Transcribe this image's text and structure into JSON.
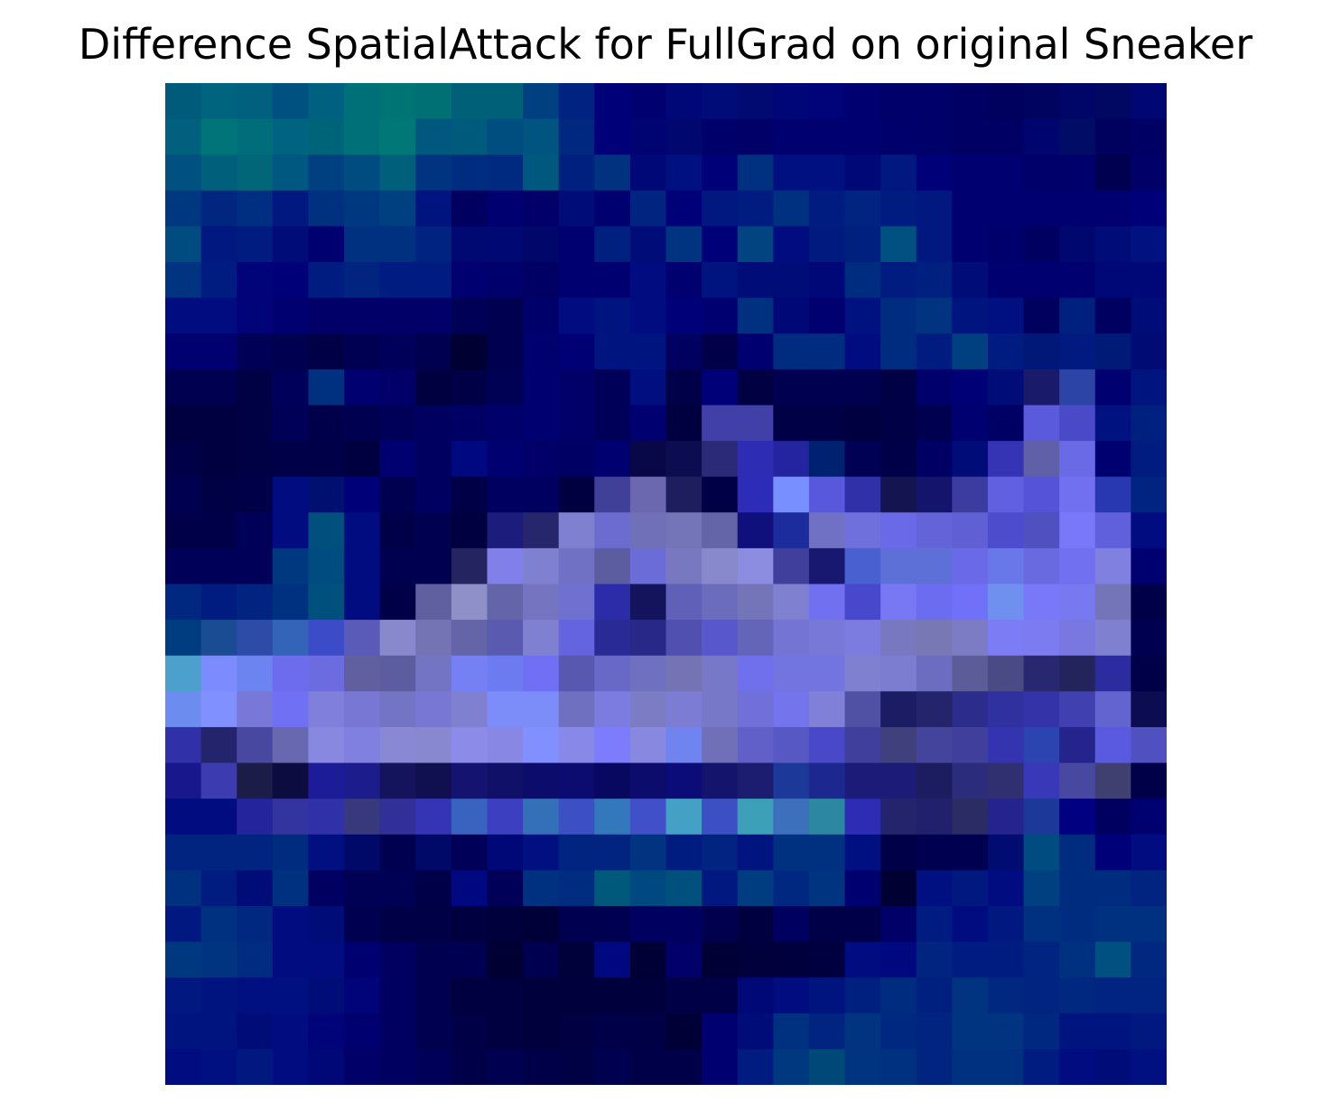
{
  "chart_data": {
    "type": "heatmap",
    "title": "Difference SpatialAttack for FullGrad on original Sneaker",
    "rows": 28,
    "cols": 28,
    "grid": false,
    "axes_visible": false,
    "colors": [
      [
        "#005a7a",
        "#00647e",
        "#00607e",
        "#005080",
        "#006080",
        "#007078",
        "#007474",
        "#007074",
        "#006078",
        "#006078",
        "#004080",
        "#002280",
        "#000078",
        "#000070",
        "#000878",
        "#000c78",
        "#000a70",
        "#000678",
        "#000478",
        "#000070",
        "#00006a",
        "#00006a",
        "#000064",
        "#00005e",
        "#00045e",
        "#000668",
        "#000862",
        "#000672"
      ],
      [
        "#00607e",
        "#007478",
        "#006e7a",
        "#006480",
        "#006478",
        "#007078",
        "#007878",
        "#00587e",
        "#005a7c",
        "#004e80",
        "#005480",
        "#002880",
        "#000078",
        "#000472",
        "#000870",
        "#00006a",
        "#000068",
        "#000070",
        "#000070",
        "#000070",
        "#00006c",
        "#00006a",
        "#000064",
        "#000064",
        "#00046e",
        "#000c66",
        "#00005e",
        "#000064"
      ],
      [
        "#005080",
        "#00607c",
        "#006678",
        "#005880",
        "#004080",
        "#004c80",
        "#00607c",
        "#003480",
        "#002c80",
        "#002a80",
        "#00587e",
        "#002080",
        "#003280",
        "#000878",
        "#001080",
        "#000078",
        "#003080",
        "#001080",
        "#001080",
        "#000878",
        "#001880",
        "#000078",
        "#000070",
        "#000070",
        "#00006a",
        "#00006c",
        "#000050",
        "#000068"
      ],
      [
        "#003880",
        "#002680",
        "#002e80",
        "#001880",
        "#003080",
        "#003880",
        "#004080",
        "#001480",
        "#000060",
        "#000070",
        "#000068",
        "#000c78",
        "#000070",
        "#002480",
        "#000078",
        "#001880",
        "#001c80",
        "#003080",
        "#001c80",
        "#002480",
        "#001c80",
        "#001880",
        "#000070",
        "#000070",
        "#000070",
        "#000070",
        "#000070",
        "#000078"
      ],
      [
        "#004c80",
        "#001880",
        "#001c80",
        "#000c78",
        "#000070",
        "#003080",
        "#003080",
        "#002280",
        "#000872",
        "#000874",
        "#00066a",
        "#000070",
        "#002080",
        "#000c78",
        "#003480",
        "#000078",
        "#004480",
        "#000c80",
        "#001a80",
        "#002080",
        "#005080",
        "#001880",
        "#000070",
        "#00006c",
        "#000060",
        "#000870",
        "#000c78",
        "#001280"
      ],
      [
        "#003480",
        "#001c80",
        "#000478",
        "#000078",
        "#001c80",
        "#002480",
        "#001c80",
        "#001c80",
        "#000070",
        "#00006c",
        "#000064",
        "#000070",
        "#000070",
        "#000c80",
        "#000070",
        "#001480",
        "#000c78",
        "#000c78",
        "#000878",
        "#002c80",
        "#001c80",
        "#002080",
        "#000c78",
        "#000070",
        "#000070",
        "#000070",
        "#000878",
        "#000878"
      ],
      [
        "#000c80",
        "#000c80",
        "#000478",
        "#000070",
        "#000068",
        "#000068",
        "#000068",
        "#000068",
        "#000056",
        "#000050",
        "#00006a",
        "#000c80",
        "#001480",
        "#000c80",
        "#000078",
        "#000070",
        "#003080",
        "#000878",
        "#000070",
        "#001280",
        "#002c80",
        "#003480",
        "#001480",
        "#001080",
        "#00005e",
        "#002080",
        "#000060",
        "#000c78"
      ],
      [
        "#000070",
        "#000070",
        "#000056",
        "#000050",
        "#000046",
        "#000052",
        "#00005a",
        "#000050",
        "#000032",
        "#000050",
        "#00006e",
        "#000074",
        "#001480",
        "#001480",
        "#000060",
        "#000048",
        "#000070",
        "#002c80",
        "#002c80",
        "#000c80",
        "#002c80",
        "#001c80",
        "#004080",
        "#001c80",
        "#001878",
        "#001a80",
        "#001a78",
        "#000c74"
      ],
      [
        "#000050",
        "#000050",
        "#000044",
        "#00005a",
        "#003080",
        "#000070",
        "#000068",
        "#000040",
        "#000046",
        "#000054",
        "#000070",
        "#000068",
        "#000058",
        "#000e80",
        "#000048",
        "#000078",
        "#000042",
        "#000050",
        "#000050",
        "#000050",
        "#000044",
        "#00006c",
        "#000076",
        "#000c78",
        "#1a1a6a",
        "#2c44a6",
        "#000070",
        "#001480"
      ],
      [
        "#000040",
        "#000040",
        "#000044",
        "#000056",
        "#00004a",
        "#000050",
        "#000058",
        "#000060",
        "#000064",
        "#00006a",
        "#000070",
        "#000068",
        "#000058",
        "#000070",
        "#000040",
        "#4040a8",
        "#4040a8",
        "#000046",
        "#000046",
        "#000040",
        "#000046",
        "#000050",
        "#000070",
        "#000064",
        "#5a5adc",
        "#4a4ac8",
        "#001280",
        "#002080"
      ],
      [
        "#000048",
        "#000040",
        "#000044",
        "#000048",
        "#000048",
        "#000040",
        "#000070",
        "#000060",
        "#000880",
        "#000070",
        "#000068",
        "#000064",
        "#000070",
        "#080848",
        "#0c0c50",
        "#2a2a78",
        "#2c2cb4",
        "#2424a0",
        "#002070",
        "#000054",
        "#000048",
        "#000064",
        "#000c78",
        "#3434b4",
        "#6060a8",
        "#6a6ae6",
        "#000070",
        "#001c80"
      ],
      [
        "#000050",
        "#000044",
        "#000048",
        "#000c80",
        "#001070",
        "#000078",
        "#000050",
        "#000060",
        "#000046",
        "#000060",
        "#000060",
        "#000040",
        "#404098",
        "#6c68b0",
        "#1e1e5e",
        "#000046",
        "#2c2cb8",
        "#7890ff",
        "#5858dc",
        "#3030a8",
        "#141450",
        "#14146c",
        "#3c3ca0",
        "#6060e0",
        "#5454d8",
        "#7070f0",
        "#2838b0",
        "#002480"
      ],
      [
        "#000048",
        "#000048",
        "#000058",
        "#000c80",
        "#00507e",
        "#000c80",
        "#000048",
        "#000050",
        "#000040",
        "#1c1c7c",
        "#26266c",
        "#8080d0",
        "#6c6cd0",
        "#7070b8",
        "#7474b8",
        "#6464a8",
        "#10107c",
        "#1c2c9c",
        "#7070c4",
        "#7070dc",
        "#6a6ae8",
        "#6464d8",
        "#6060d4",
        "#4c4ccc",
        "#5050c0",
        "#7878f8",
        "#6060dc",
        "#000c80"
      ],
      [
        "#000058",
        "#000058",
        "#000058",
        "#003880",
        "#004c80",
        "#000c80",
        "#000050",
        "#000050",
        "#242460",
        "#8080e8",
        "#8080d0",
        "#7070c4",
        "#5c5ca0",
        "#6c6cd8",
        "#7878c0",
        "#8888cc",
        "#8c8ce0",
        "#40409c",
        "#181870",
        "#4860d0",
        "#5c70d8",
        "#5c70d8",
        "#6a6ae8",
        "#6878e8",
        "#6a6ae0",
        "#7070f0",
        "#8080e0",
        "#000070"
      ],
      [
        "#002880",
        "#001c80",
        "#002480",
        "#003080",
        "#00507e",
        "#000c80",
        "#000048",
        "#6060a0",
        "#9090c8",
        "#6464a8",
        "#7474c0",
        "#7070d0",
        "#2c2ca8",
        "#14145c",
        "#6060b8",
        "#6c6cbc",
        "#7474b8",
        "#8080d0",
        "#7070f0",
        "#4848cc",
        "#7878f4",
        "#6c6cf0",
        "#7070f8",
        "#7090f0",
        "#7878f8",
        "#7878f0",
        "#7474b8",
        "#000048"
      ],
      [
        "#003c80",
        "#1a4c94",
        "#2c4ca8",
        "#3464b8",
        "#3c4cc8",
        "#5a5ab8",
        "#8888cc",
        "#7474b4",
        "#6464a8",
        "#5a5ab0",
        "#8080d0",
        "#6464e0",
        "#2a2a96",
        "#282888",
        "#5050b0",
        "#5858cc",
        "#6464b8",
        "#7474d4",
        "#7878d8",
        "#7c7ce0",
        "#7878c0",
        "#7878b4",
        "#7c7cc4",
        "#7c7cf4",
        "#7c7cf0",
        "#7878e0",
        "#8080d0",
        "#000050"
      ],
      [
        "#4ca0cc",
        "#7c8cff",
        "#6c84f0",
        "#6c6cec",
        "#6c6ce0",
        "#6060a0",
        "#5c5ca0",
        "#7474c4",
        "#7480f4",
        "#6c7cf0",
        "#7070f4",
        "#5858b0",
        "#6868c8",
        "#7070c0",
        "#7474b4",
        "#7878c8",
        "#7070ec",
        "#7474e0",
        "#7474e0",
        "#8080d0",
        "#7c7cd0",
        "#6c6cc0",
        "#5c5c98",
        "#4a4a84",
        "#282870",
        "#24245c",
        "#2c2ca0",
        "#000048"
      ],
      [
        "#6c8cf0",
        "#8090ff",
        "#7878d8",
        "#7070f4",
        "#8080dc",
        "#7878d4",
        "#7474c4",
        "#7878d4",
        "#8080d0",
        "#7c8cf8",
        "#7c8cf8",
        "#7070c0",
        "#7c7ce0",
        "#7c7cc4",
        "#7c7cd4",
        "#7878c8",
        "#7070d8",
        "#7474ec",
        "#8080d8",
        "#5050a4",
        "#1c1c64",
        "#24246c",
        "#2c2c8c",
        "#3030a0",
        "#3434a8",
        "#4040b0",
        "#6464d0",
        "#0c0c50"
      ],
      [
        "#3030a8",
        "#24246c",
        "#4848a0",
        "#6868b0",
        "#8888e0",
        "#8080e0",
        "#8888d4",
        "#8888d0",
        "#8c8ce8",
        "#8888e4",
        "#8090ff",
        "#8888e8",
        "#7c7cfc",
        "#8888e0",
        "#7084f0",
        "#7070b8",
        "#6060c8",
        "#5858c4",
        "#4848c8",
        "#40409c",
        "#40407c",
        "#44449c",
        "#40409c",
        "#3434b0",
        "#2c44b0",
        "#24248c",
        "#5a5ae0",
        "#5050c0"
      ],
      [
        "#18188c",
        "#3c3cb0",
        "#1c1c48",
        "#0c0c40",
        "#1c1c98",
        "#1c1c8c",
        "#14145c",
        "#101050",
        "#141470",
        "#101068",
        "#0c0c6c",
        "#0c0c70",
        "#080860",
        "#0c0c6c",
        "#0c0c78",
        "#14146c",
        "#1c1c70",
        "#1c3898",
        "#1c2890",
        "#1c1c78",
        "#1c1c78",
        "#1c1c60",
        "#2c2c7c",
        "#303070",
        "#3838b8",
        "#4848a0",
        "#404070",
        "#000048"
      ],
      [
        "#000c80",
        "#000c80",
        "#24249c",
        "#3434a0",
        "#3030a8",
        "#38387c",
        "#303098",
        "#3434b4",
        "#3864c0",
        "#3c40c0",
        "#3470b8",
        "#3c50c4",
        "#3478bc",
        "#4050c8",
        "#44a0c4",
        "#3c50c4",
        "#3ca0b8",
        "#3c70bc",
        "#2c88a0",
        "#2c2cb4",
        "#24246c",
        "#20206c",
        "#2c2c64",
        "#24248c",
        "#1c3898",
        "#000080",
        "#000060",
        "#000070"
      ],
      [
        "#002480",
        "#002480",
        "#002480",
        "#002c80",
        "#001080",
        "#000868",
        "#000050",
        "#000868",
        "#000058",
        "#000878",
        "#001080",
        "#002480",
        "#002480",
        "#003480",
        "#001c80",
        "#002480",
        "#001480",
        "#003080",
        "#003080",
        "#001080",
        "#000048",
        "#000050",
        "#000050",
        "#000c70",
        "#004c80",
        "#002c80",
        "#000078",
        "#000c80"
      ],
      [
        "#003080",
        "#001c80",
        "#000c78",
        "#003080",
        "#000060",
        "#000054",
        "#000054",
        "#000048",
        "#000880",
        "#000058",
        "#003080",
        "#002c80",
        "#00587a",
        "#004880",
        "#00507e",
        "#001880",
        "#003c80",
        "#002880",
        "#003480",
        "#000070",
        "#000032",
        "#001080",
        "#001880",
        "#000c80",
        "#004080",
        "#002c80",
        "#002c80",
        "#002480"
      ],
      [
        "#001880",
        "#003080",
        "#002880",
        "#000c80",
        "#000c78",
        "#000050",
        "#000046",
        "#000046",
        "#000040",
        "#00003c",
        "#000038",
        "#000050",
        "#000050",
        "#000060",
        "#000060",
        "#00004e",
        "#000040",
        "#000060",
        "#000048",
        "#000048",
        "#000068",
        "#001c80",
        "#000c80",
        "#001880",
        "#003080",
        "#002c80",
        "#003080",
        "#003080"
      ],
      [
        "#003880",
        "#003480",
        "#002c80",
        "#000c80",
        "#000c80",
        "#000070",
        "#000060",
        "#000050",
        "#000050",
        "#000032",
        "#000050",
        "#00003a",
        "#000880",
        "#000036",
        "#000068",
        "#000036",
        "#00003c",
        "#00003c",
        "#000040",
        "#000c80",
        "#000880",
        "#002480",
        "#001c80",
        "#001c80",
        "#002480",
        "#003080",
        "#005080",
        "#002880"
      ],
      [
        "#001880",
        "#001480",
        "#001080",
        "#001080",
        "#000c78",
        "#000478",
        "#000060",
        "#000050",
        "#000040",
        "#000040",
        "#00003c",
        "#00003c",
        "#00003c",
        "#00003c",
        "#000046",
        "#000046",
        "#000878",
        "#000c80",
        "#001480",
        "#002080",
        "#002c80",
        "#002080",
        "#003480",
        "#002880",
        "#002480",
        "#002880",
        "#002480",
        "#002480"
      ],
      [
        "#001480",
        "#001480",
        "#000c78",
        "#000c80",
        "#000478",
        "#000070",
        "#000060",
        "#000050",
        "#000046",
        "#000040",
        "#00003c",
        "#000042",
        "#000048",
        "#000046",
        "#000036",
        "#000070",
        "#000c78",
        "#003080",
        "#002480",
        "#003480",
        "#002880",
        "#002480",
        "#003480",
        "#003480",
        "#002880",
        "#001480",
        "#001480",
        "#001880"
      ],
      [
        "#000c80",
        "#001080",
        "#001880",
        "#000c80",
        "#000878",
        "#000068",
        "#000060",
        "#000058",
        "#000048",
        "#000050",
        "#000048",
        "#000044",
        "#000050",
        "#000048",
        "#000048",
        "#000070",
        "#001c80",
        "#003880",
        "#004878",
        "#003480",
        "#003080",
        "#002480",
        "#003080",
        "#003080",
        "#001c80",
        "#000c80",
        "#000c78",
        "#001080"
      ]
    ]
  }
}
